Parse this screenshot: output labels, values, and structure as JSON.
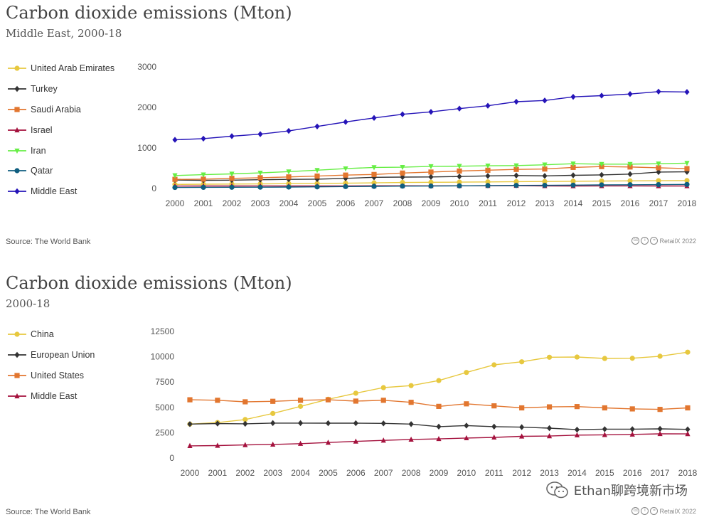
{
  "chart_data": [
    {
      "type": "line",
      "title": "Carbon dioxide emissions (Mton)",
      "subtitle": "Middle East, 2000-18",
      "ylim": [
        0,
        3000
      ],
      "yticks": [
        0,
        1000,
        2000,
        3000
      ],
      "x": [
        2000,
        2001,
        2002,
        2003,
        2004,
        2005,
        2006,
        2007,
        2008,
        2009,
        2010,
        2011,
        2012,
        2013,
        2014,
        2015,
        2016,
        2017,
        2018
      ],
      "grid": false,
      "legend": "left",
      "source": "Source: The World Bank",
      "credit": "RetailX 2022",
      "series": [
        {
          "name": "United Arab Emirates",
          "color": "#e7c83f",
          "marker": "circle",
          "values": [
            100,
            105,
            108,
            113,
            120,
            124,
            130,
            138,
            148,
            152,
            157,
            162,
            168,
            172,
            178,
            183,
            188,
            192,
            195
          ]
        },
        {
          "name": "Turkey",
          "color": "#333333",
          "marker": "diamond",
          "values": [
            210,
            200,
            205,
            215,
            225,
            230,
            250,
            275,
            280,
            285,
            295,
            310,
            320,
            310,
            325,
            335,
            355,
            405,
            410
          ]
        },
        {
          "name": "Saudi Arabia",
          "color": "#e2762f",
          "marker": "square",
          "values": [
            225,
            230,
            250,
            265,
            285,
            305,
            330,
            345,
            380,
            405,
            430,
            450,
            470,
            480,
            520,
            540,
            530,
            510,
            490
          ]
        },
        {
          "name": "Israel",
          "color": "#a4113d",
          "marker": "triangle",
          "values": [
            60,
            62,
            62,
            63,
            62,
            62,
            64,
            66,
            66,
            65,
            67,
            67,
            70,
            64,
            62,
            64,
            63,
            62,
            62
          ]
        },
        {
          "name": "Iran",
          "color": "#66ee44",
          "marker": "triangle-down",
          "values": [
            320,
            340,
            360,
            385,
            415,
            450,
            490,
            520,
            525,
            545,
            550,
            560,
            565,
            585,
            610,
            600,
            600,
            610,
            625
          ]
        },
        {
          "name": "Qatar",
          "color": "#0f5e80",
          "marker": "circle",
          "values": [
            25,
            28,
            30,
            32,
            35,
            40,
            47,
            52,
            58,
            60,
            65,
            72,
            75,
            78,
            82,
            88,
            92,
            95,
            100
          ]
        },
        {
          "name": "Middle East",
          "color": "#2514b8",
          "marker": "diamond",
          "values": [
            1200,
            1230,
            1290,
            1340,
            1420,
            1530,
            1640,
            1740,
            1830,
            1890,
            1970,
            2040,
            2140,
            2170,
            2260,
            2290,
            2330,
            2390,
            2380
          ]
        }
      ]
    },
    {
      "type": "line",
      "title": "Carbon dioxide emissions (Mton)",
      "subtitle": "2000-18",
      "ylim": [
        0,
        12500
      ],
      "yticks": [
        0,
        2500,
        5000,
        7500,
        10000,
        12500
      ],
      "x": [
        2000,
        2001,
        2002,
        2003,
        2004,
        2005,
        2006,
        2007,
        2008,
        2009,
        2010,
        2011,
        2012,
        2013,
        2014,
        2015,
        2016,
        2017,
        2018
      ],
      "grid": false,
      "legend": "left",
      "source": "Source: The World Bank",
      "credit": "RetailX 2022",
      "series": [
        {
          "name": "China",
          "color": "#e7c83f",
          "marker": "circle",
          "values": [
            3350,
            3500,
            3800,
            4400,
            5100,
            5800,
            6400,
            6950,
            7150,
            7650,
            8450,
            9200,
            9500,
            9950,
            9970,
            9830,
            9850,
            10050,
            10450
          ]
        },
        {
          "name": "European Union",
          "color": "#333333",
          "marker": "diamond",
          "values": [
            3350,
            3400,
            3380,
            3450,
            3450,
            3440,
            3440,
            3420,
            3350,
            3100,
            3200,
            3100,
            3050,
            2950,
            2800,
            2850,
            2850,
            2880,
            2830
          ]
        },
        {
          "name": "United States",
          "color": "#e2762f",
          "marker": "square",
          "values": [
            5750,
            5700,
            5550,
            5600,
            5700,
            5750,
            5620,
            5700,
            5500,
            5100,
            5350,
            5150,
            4950,
            5050,
            5080,
            4950,
            4850,
            4800,
            4950
          ]
        },
        {
          "name": "Middle East",
          "color": "#a4113d",
          "marker": "triangle",
          "values": [
            1200,
            1230,
            1290,
            1340,
            1420,
            1530,
            1640,
            1740,
            1830,
            1890,
            1970,
            2040,
            2140,
            2170,
            2260,
            2290,
            2330,
            2390,
            2380
          ]
        }
      ]
    }
  ],
  "watermark": {
    "text": "Ethan聊跨境新市场",
    "icon": "wechat-icon"
  }
}
